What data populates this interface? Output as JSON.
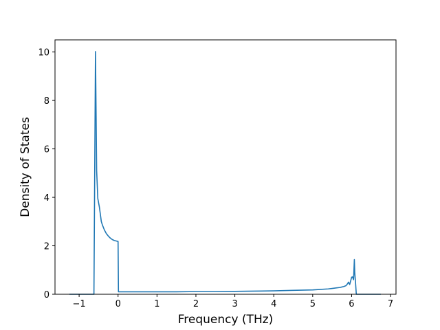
{
  "chart_data": {
    "type": "line",
    "title": "",
    "xlabel": "Frequency (THz)",
    "ylabel": "Density of States",
    "xlim": [
      -1.62,
      7.14
    ],
    "ylim": [
      0,
      10.5
    ],
    "xticks": [
      -1,
      0,
      1,
      2,
      3,
      4,
      5,
      6,
      7
    ],
    "xtick_labels": [
      "−1",
      "0",
      "1",
      "2",
      "3",
      "4",
      "5",
      "6",
      "7"
    ],
    "yticks": [
      0,
      2,
      4,
      6,
      8,
      10
    ],
    "ytick_labels": [
      "0",
      "2",
      "4",
      "6",
      "8",
      "10"
    ],
    "grid": false,
    "legend": "none",
    "line_color": "#1f77b4",
    "series": [
      {
        "x": [
          -1.25,
          -0.62,
          -0.58,
          -0.55,
          -0.52,
          -0.48,
          -0.43,
          -0.4,
          -0.35,
          -0.3,
          -0.25,
          -0.2,
          -0.15,
          -0.1,
          -0.05,
          0.0,
          0.01,
          0.03,
          0.5,
          1.0,
          1.5,
          2.0,
          2.5,
          3.0,
          3.5,
          4.0,
          4.5,
          5.0,
          5.2,
          5.4,
          5.5,
          5.6,
          5.7,
          5.75,
          5.8,
          5.85,
          5.88,
          5.92,
          5.95,
          6.0,
          6.02,
          6.05,
          6.07,
          6.08,
          6.1,
          6.12,
          6.5,
          6.75
        ],
        "y": [
          0.0,
          0.0,
          10.02,
          5.1,
          3.95,
          3.6,
          3.0,
          2.85,
          2.65,
          2.5,
          2.4,
          2.32,
          2.26,
          2.22,
          2.2,
          2.18,
          0.1,
          0.1,
          0.1,
          0.1,
          0.1,
          0.11,
          0.11,
          0.12,
          0.13,
          0.14,
          0.16,
          0.18,
          0.2,
          0.22,
          0.24,
          0.26,
          0.28,
          0.3,
          0.32,
          0.35,
          0.4,
          0.5,
          0.4,
          0.7,
          0.72,
          0.6,
          1.43,
          0.9,
          0.5,
          0.0,
          0.0,
          0.0
        ]
      }
    ]
  }
}
